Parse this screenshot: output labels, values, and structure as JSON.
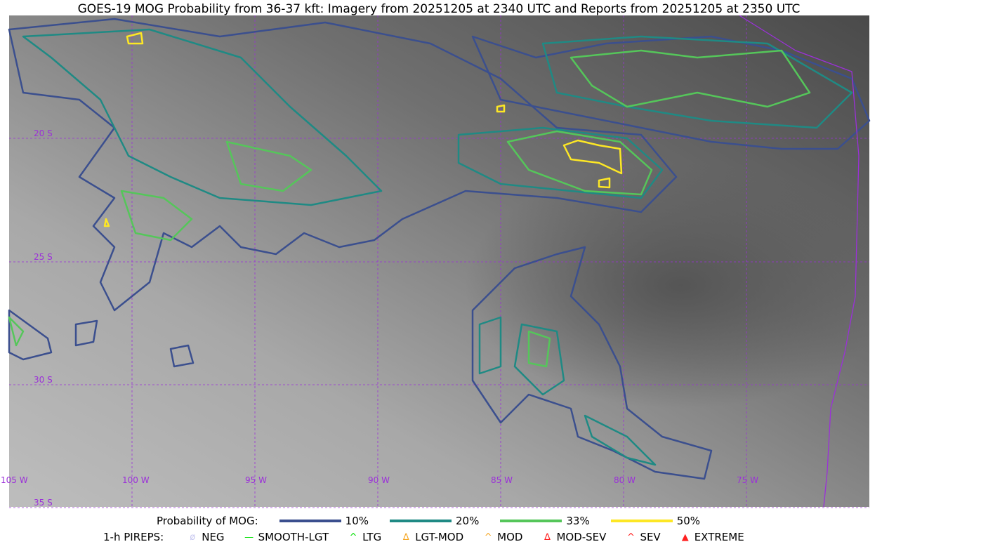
{
  "title": "GOES-19 MOG Probability from 36-37 kft: Imagery from 20251205 at 2340 UTC and Reports from 20251205 at 2350 UTC",
  "map": {
    "lon_labels": [
      "105 W",
      "100 W",
      "95 W",
      "90 W",
      "85 W",
      "80 W",
      "75 W"
    ],
    "lat_labels": [
      "20 S",
      "25 S",
      "30 S",
      "35 S"
    ],
    "grid_color": "#9b30d9",
    "coast_color": "#9b30d9"
  },
  "legend": {
    "prob_label": "Probability of MOG:",
    "prob_items": [
      {
        "label": "10%",
        "color": "#3b4f8e"
      },
      {
        "label": "20%",
        "color": "#1f8a84"
      },
      {
        "label": "33%",
        "color": "#55c65a"
      },
      {
        "label": "50%",
        "color": "#fde725"
      }
    ],
    "pirep_label": "1-h PIREPS:",
    "pirep_items": [
      {
        "label": "NEG",
        "color": "#c8c8f0",
        "icon": "neg-circle-icon",
        "glyph": "ø"
      },
      {
        "label": "SMOOTH-LGT",
        "color": "#00e000",
        "icon": "line-icon",
        "glyph": "—"
      },
      {
        "label": "LTG",
        "color": "#00e000",
        "icon": "caret-icon",
        "glyph": "^"
      },
      {
        "label": "LGT-MOD",
        "color": "#f5a623",
        "icon": "caret-bar-icon",
        "glyph": "∆"
      },
      {
        "label": "MOD",
        "color": "#f5a623",
        "icon": "caret-icon",
        "glyph": "^"
      },
      {
        "label": "MOD-SEV",
        "color": "#ff2020",
        "icon": "double-caret-bar-icon",
        "glyph": "∆"
      },
      {
        "label": "SEV",
        "color": "#ff2020",
        "icon": "double-caret-icon",
        "glyph": "^"
      },
      {
        "label": "EXTREME",
        "color": "#ff2020",
        "icon": "filled-triangle-icon",
        "glyph": "▲"
      }
    ]
  }
}
